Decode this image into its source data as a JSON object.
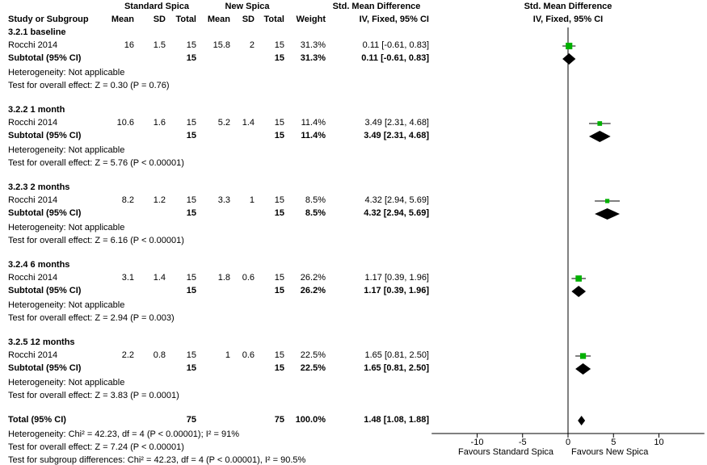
{
  "headers": {
    "group1": "Standard Spica",
    "group2": "New Spica",
    "study": "Study or Subgroup",
    "mean": "Mean",
    "sd": "SD",
    "total": "Total",
    "weight": "Weight",
    "smd": "Std. Mean Difference",
    "method": "IV, Fixed, 95% CI"
  },
  "subtotal_label": "Subtotal (95% CI)",
  "subgroups": [
    {
      "title": "3.2.1 baseline",
      "study": "Rocchi 2014",
      "m1": "16",
      "sd1": "1.5",
      "n1": "15",
      "m2": "15.8",
      "sd2": "2",
      "n2": "15",
      "weight": "31.3%",
      "ci_text": "0.11 [-0.61, 0.83]",
      "sub_n1": "15",
      "sub_n2": "15",
      "sub_weight": "31.3%",
      "sub_ci_text": "0.11 [-0.61, 0.83]",
      "heterogeneity": "Heterogeneity: Not applicable",
      "overall": "Test for overall effect: Z = 0.30 (P = 0.76)"
    },
    {
      "title": "3.2.2 1 month",
      "study": "Rocchi 2014",
      "m1": "10.6",
      "sd1": "1.6",
      "n1": "15",
      "m2": "5.2",
      "sd2": "1.4",
      "n2": "15",
      "weight": "11.4%",
      "ci_text": "3.49 [2.31, 4.68]",
      "sub_n1": "15",
      "sub_n2": "15",
      "sub_weight": "11.4%",
      "sub_ci_text": "3.49 [2.31, 4.68]",
      "heterogeneity": "Heterogeneity: Not applicable",
      "overall": "Test for overall effect: Z = 5.76 (P < 0.00001)"
    },
    {
      "title": "3.2.3 2 months",
      "study": "Rocchi 2014",
      "m1": "8.2",
      "sd1": "1.2",
      "n1": "15",
      "m2": "3.3",
      "sd2": "1",
      "n2": "15",
      "weight": "8.5%",
      "ci_text": "4.32 [2.94, 5.69]",
      "sub_n1": "15",
      "sub_n2": "15",
      "sub_weight": "8.5%",
      "sub_ci_text": "4.32 [2.94, 5.69]",
      "heterogeneity": "Heterogeneity: Not applicable",
      "overall": "Test for overall effect: Z = 6.16 (P < 0.00001)"
    },
    {
      "title": "3.2.4 6 months",
      "study": "Rocchi 2014",
      "m1": "3.1",
      "sd1": "1.4",
      "n1": "15",
      "m2": "1.8",
      "sd2": "0.6",
      "n2": "15",
      "weight": "26.2%",
      "ci_text": "1.17 [0.39, 1.96]",
      "sub_n1": "15",
      "sub_n2": "15",
      "sub_weight": "26.2%",
      "sub_ci_text": "1.17 [0.39, 1.96]",
      "heterogeneity": "Heterogeneity: Not applicable",
      "overall": "Test for overall effect: Z = 2.94 (P = 0.003)"
    },
    {
      "title": "3.2.5 12 months",
      "study": "Rocchi 2014",
      "m1": "2.2",
      "sd1": "0.8",
      "n1": "15",
      "m2": "1",
      "sd2": "0.6",
      "n2": "15",
      "weight": "22.5%",
      "ci_text": "1.65 [0.81, 2.50]",
      "sub_n1": "15",
      "sub_n2": "15",
      "sub_weight": "22.5%",
      "sub_ci_text": "1.65 [0.81, 2.50]",
      "heterogeneity": "Heterogeneity: Not applicable",
      "overall": "Test for overall effect: Z = 3.83 (P = 0.0001)"
    }
  ],
  "total": {
    "label": "Total (95% CI)",
    "n1": "75",
    "n2": "75",
    "weight": "100.0%",
    "ci_text": "1.48 [1.08, 1.88]",
    "heterogeneity": "Heterogeneity: Chi² = 42.23, df = 4 (P < 0.00001); I² = 91%",
    "overall": "Test for overall effect: Z = 7.24 (P < 0.00001)",
    "subgroup_diff": "Test for subgroup differences: Chi² = 42.23, df = 4 (P < 0.00001), I² = 90.5%"
  },
  "favours_left": "Favours Standard Spica",
  "favours_right": "Favours New Spica",
  "colors": {
    "study_marker": "#00b000",
    "diamond": "#000000",
    "axis": "#000000"
  },
  "chart_data": {
    "type": "forest",
    "xlim": [
      -15,
      15
    ],
    "xticks": [
      -10,
      -5,
      0,
      5,
      10
    ],
    "xtick_labels": [
      "-10",
      "-5",
      "0",
      "5",
      "10"
    ],
    "studies": [
      {
        "group": "3.2.1 baseline",
        "est": 0.11,
        "lo": -0.61,
        "hi": 0.83,
        "weight": 31.3
      },
      {
        "group": "3.2.2 1 month",
        "est": 3.49,
        "lo": 2.31,
        "hi": 4.68,
        "weight": 11.4
      },
      {
        "group": "3.2.3 2 months",
        "est": 4.32,
        "lo": 2.94,
        "hi": 5.69,
        "weight": 8.5
      },
      {
        "group": "3.2.4 6 months",
        "est": 1.17,
        "lo": 0.39,
        "hi": 1.96,
        "weight": 26.2
      },
      {
        "group": "3.2.5 12 months",
        "est": 1.65,
        "lo": 0.81,
        "hi": 2.5,
        "weight": 22.5
      }
    ],
    "subtotals": [
      {
        "est": 0.11,
        "lo": -0.61,
        "hi": 0.83
      },
      {
        "est": 3.49,
        "lo": 2.31,
        "hi": 4.68
      },
      {
        "est": 4.32,
        "lo": 2.94,
        "hi": 5.69
      },
      {
        "est": 1.17,
        "lo": 0.39,
        "hi": 1.96
      },
      {
        "est": 1.65,
        "lo": 0.81,
        "hi": 2.5
      }
    ],
    "overall": {
      "est": 1.48,
      "lo": 1.08,
      "hi": 1.88
    }
  }
}
